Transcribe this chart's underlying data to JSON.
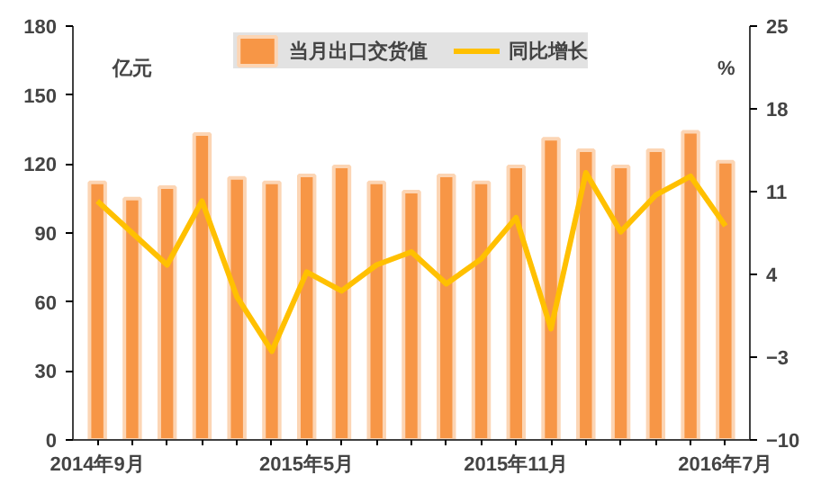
{
  "chart_data": {
    "type": "bar",
    "categories": [
      "2014年9月",
      null,
      null,
      null,
      null,
      null,
      "2015年5月",
      null,
      null,
      null,
      null,
      null,
      "2015年11月",
      null,
      null,
      null,
      null,
      null,
      "2016年7月"
    ],
    "series": [
      {
        "name": "当月出口交货值",
        "color": "#f79646",
        "values": [
          112,
          105,
          110,
          133,
          114,
          112,
          115,
          119,
          112,
          108,
          115,
          112,
          119,
          131,
          126,
          119,
          126,
          134,
          121
        ]
      },
      {
        "name": "同比增长",
        "type": "line",
        "axis": "y2",
        "color": "#ffc000",
        "values": [
          10.2,
          7.5,
          4.8,
          10.2,
          2.1,
          -2.5,
          4.2,
          2.6,
          4.8,
          5.9,
          3.2,
          5.3,
          8.8,
          -0.6,
          12.6,
          7.6,
          10.7,
          12.3,
          8.1
        ]
      }
    ],
    "ylim": [
      0,
      180
    ],
    "yticks": [
      0,
      30,
      60,
      90,
      120,
      150,
      180
    ],
    "y2lim": [
      -10,
      25
    ],
    "y2ticks": [
      -10,
      -3,
      4,
      11,
      18,
      25
    ],
    "annotations": [
      "亿元",
      "%"
    ],
    "legend": "top",
    "grid": false,
    "line_style": "solid",
    "marker": "none"
  }
}
